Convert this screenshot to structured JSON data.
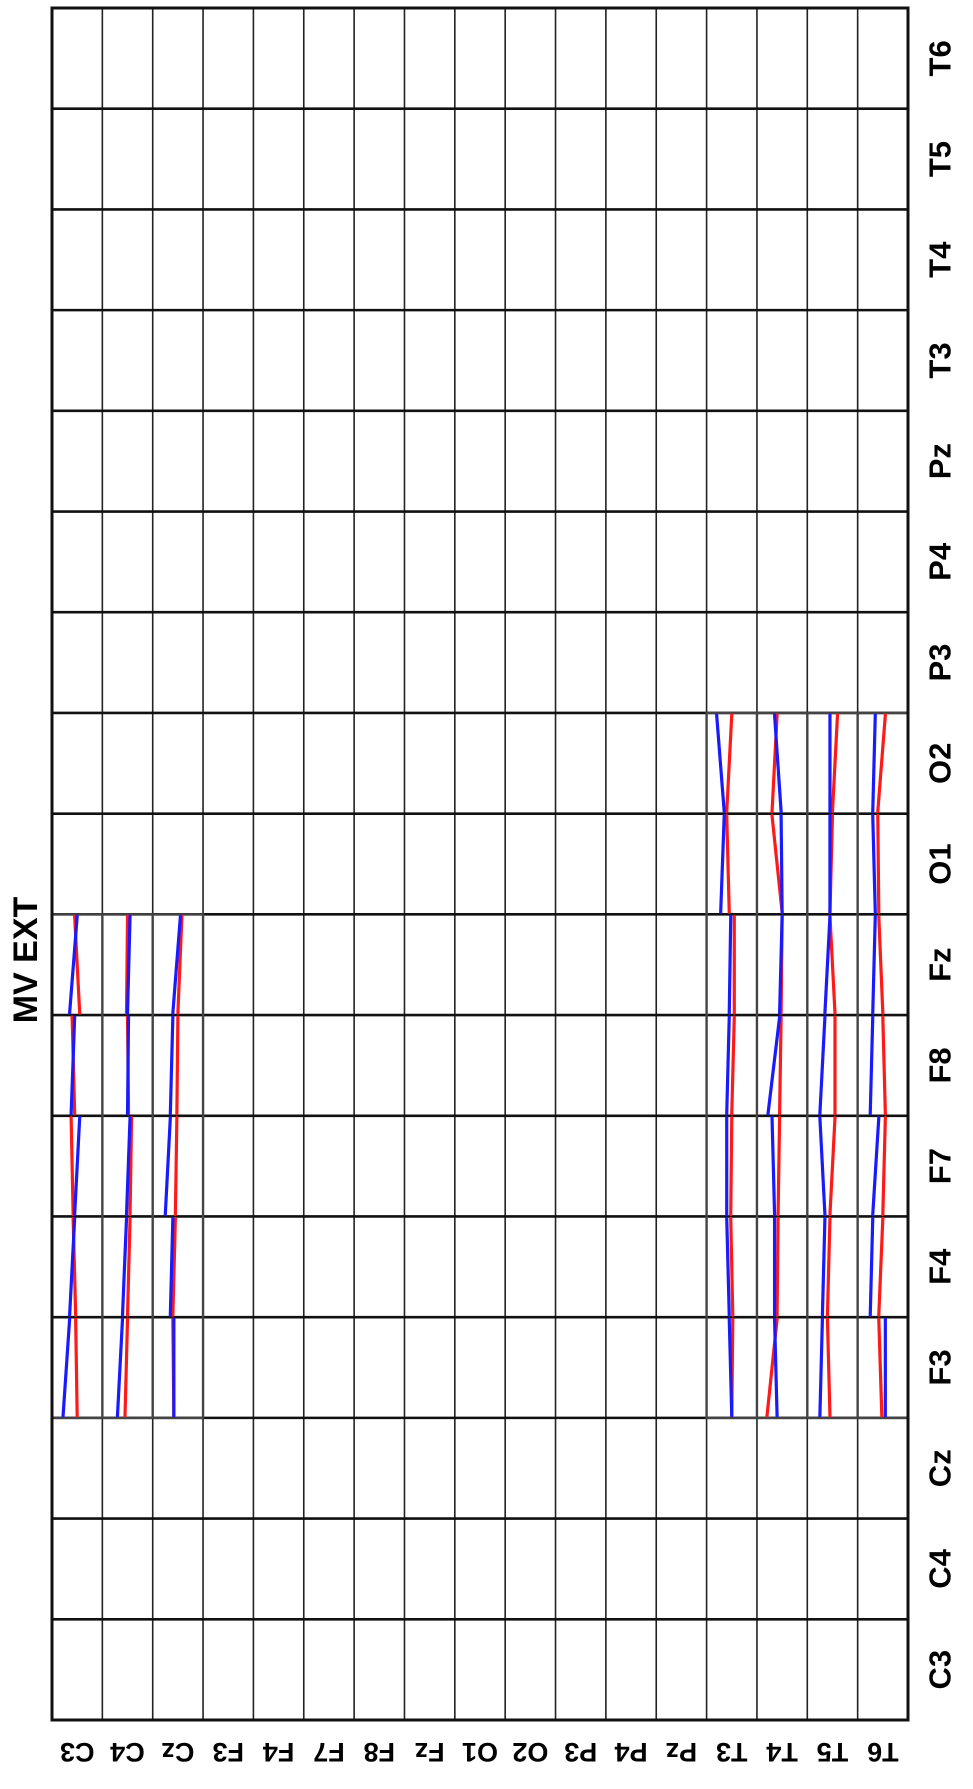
{
  "chart_data": {
    "type": "heatmap",
    "title": "MV EXT",
    "row_labels": [
      "C3",
      "C4",
      "Cz",
      "F3",
      "F4",
      "F7",
      "F8",
      "Fz",
      "O1",
      "O2",
      "P3",
      "P4",
      "Pz",
      "T3",
      "T4",
      "T5",
      "T6"
    ],
    "col_labels": [
      "C3",
      "C4",
      "Cz",
      "F3",
      "F4",
      "F7",
      "F8",
      "Fz",
      "O1",
      "O2",
      "P3",
      "P4",
      "Pz",
      "T3",
      "T4",
      "T5",
      "T6"
    ],
    "series": [
      {
        "name": "",
        "color": "#1a1aff"
      },
      {
        "name": "",
        "color": "#ff1a1a"
      }
    ],
    "cells": [
      {
        "row": "C3",
        "col": "F3",
        "b": [
          0.22,
          0.35
        ],
        "r": [
          0.5,
          0.47
        ]
      },
      {
        "row": "C3",
        "col": "F4",
        "b": [
          0.35,
          0.45
        ],
        "r": [
          0.47,
          0.42
        ]
      },
      {
        "row": "C3",
        "col": "F7",
        "b": [
          0.45,
          0.55
        ],
        "r": [
          0.42,
          0.38
        ]
      },
      {
        "row": "C3",
        "col": "F8",
        "b": [
          0.38,
          0.45
        ],
        "r": [
          0.45,
          0.4
        ]
      },
      {
        "row": "C3",
        "col": "Fz",
        "b": [
          0.35,
          0.5
        ],
        "r": [
          0.55,
          0.45
        ]
      },
      {
        "row": "C4",
        "col": "F3",
        "b": [
          0.3,
          0.4
        ],
        "r": [
          0.45,
          0.5
        ]
      },
      {
        "row": "C4",
        "col": "F4",
        "b": [
          0.4,
          0.48
        ],
        "r": [
          0.5,
          0.55
        ]
      },
      {
        "row": "C4",
        "col": "F7",
        "b": [
          0.48,
          0.55
        ],
        "r": [
          0.55,
          0.58
        ]
      },
      {
        "row": "C4",
        "col": "F8",
        "b": [
          0.5,
          0.52
        ],
        "r": [
          0.52,
          0.5
        ]
      },
      {
        "row": "C4",
        "col": "Fz",
        "b": [
          0.5,
          0.55
        ],
        "r": [
          0.48,
          0.5
        ]
      },
      {
        "row": "Cz",
        "col": "F3",
        "b": [
          0.42,
          0.42
        ],
        "r": [
          0.42,
          0.4
        ]
      },
      {
        "row": "Cz",
        "col": "F4",
        "b": [
          0.35,
          0.4
        ],
        "r": [
          0.4,
          0.45
        ]
      },
      {
        "row": "Cz",
        "col": "F7",
        "b": [
          0.25,
          0.35
        ],
        "r": [
          0.45,
          0.48
        ]
      },
      {
        "row": "Cz",
        "col": "F8",
        "b": [
          0.35,
          0.4
        ],
        "r": [
          0.48,
          0.5
        ]
      },
      {
        "row": "Cz",
        "col": "Fz",
        "b": [
          0.4,
          0.55
        ],
        "r": [
          0.5,
          0.58
        ]
      },
      {
        "row": "T3",
        "col": "F3",
        "b": [
          0.5,
          0.45
        ],
        "r": [
          0.5,
          0.52
        ]
      },
      {
        "row": "T3",
        "col": "F4",
        "b": [
          0.45,
          0.4
        ],
        "r": [
          0.52,
          0.48
        ]
      },
      {
        "row": "T3",
        "col": "F7",
        "b": [
          0.4,
          0.4
        ],
        "r": [
          0.48,
          0.5
        ]
      },
      {
        "row": "T3",
        "col": "F8",
        "b": [
          0.4,
          0.45
        ],
        "r": [
          0.5,
          0.55
        ]
      },
      {
        "row": "T3",
        "col": "Fz",
        "b": [
          0.45,
          0.48
        ],
        "r": [
          0.55,
          0.55
        ]
      },
      {
        "row": "T3",
        "col": "O1",
        "b": [
          0.28,
          0.35
        ],
        "r": [
          0.45,
          0.4
        ]
      },
      {
        "row": "T3",
        "col": "O2",
        "b": [
          0.35,
          0.2
        ],
        "r": [
          0.4,
          0.5
        ]
      },
      {
        "row": "T4",
        "col": "F3",
        "b": [
          0.4,
          0.35
        ],
        "r": [
          0.2,
          0.4
        ]
      },
      {
        "row": "T4",
        "col": "F4",
        "b": [
          0.35,
          0.35
        ],
        "r": [
          0.4,
          0.42
        ]
      },
      {
        "row": "T4",
        "col": "F7",
        "b": [
          0.35,
          0.3
        ],
        "r": [
          0.42,
          0.45
        ]
      },
      {
        "row": "T4",
        "col": "F8",
        "b": [
          0.22,
          0.45
        ],
        "r": [
          0.45,
          0.48
        ]
      },
      {
        "row": "T4",
        "col": "Fz",
        "b": [
          0.45,
          0.5
        ],
        "r": [
          0.48,
          0.5
        ]
      },
      {
        "row": "T4",
        "col": "O1",
        "b": [
          0.5,
          0.48
        ],
        "r": [
          0.5,
          0.3
        ]
      },
      {
        "row": "T4",
        "col": "O2",
        "b": [
          0.48,
          0.35
        ],
        "r": [
          0.3,
          0.4
        ]
      },
      {
        "row": "T5",
        "col": "F3",
        "b": [
          0.25,
          0.3
        ],
        "r": [
          0.45,
          0.4
        ]
      },
      {
        "row": "T5",
        "col": "F4",
        "b": [
          0.3,
          0.35
        ],
        "r": [
          0.4,
          0.45
        ]
      },
      {
        "row": "T5",
        "col": "F7",
        "b": [
          0.35,
          0.25
        ],
        "r": [
          0.45,
          0.55
        ]
      },
      {
        "row": "T5",
        "col": "F8",
        "b": [
          0.25,
          0.35
        ],
        "r": [
          0.55,
          0.55
        ]
      },
      {
        "row": "T5",
        "col": "Fz",
        "b": [
          0.35,
          0.45
        ],
        "r": [
          0.55,
          0.45
        ]
      },
      {
        "row": "T5",
        "col": "O1",
        "b": [
          0.45,
          0.45
        ],
        "r": [
          0.45,
          0.5
        ]
      },
      {
        "row": "T5",
        "col": "O2",
        "b": [
          0.45,
          0.45
        ],
        "r": [
          0.5,
          0.6
        ]
      },
      {
        "row": "T6",
        "col": "F3",
        "b": [
          0.55,
          0.55
        ],
        "r": [
          0.48,
          0.42
        ]
      },
      {
        "row": "T6",
        "col": "F4",
        "b": [
          0.25,
          0.3
        ],
        "r": [
          0.42,
          0.5
        ]
      },
      {
        "row": "T6",
        "col": "F7",
        "b": [
          0.3,
          0.42
        ],
        "r": [
          0.5,
          0.55
        ]
      },
      {
        "row": "T6",
        "col": "F8",
        "b": [
          0.25,
          0.3
        ],
        "r": [
          0.55,
          0.5
        ]
      },
      {
        "row": "T6",
        "col": "Fz",
        "b": [
          0.3,
          0.35
        ],
        "r": [
          0.5,
          0.42
        ]
      },
      {
        "row": "T6",
        "col": "O1",
        "b": [
          0.35,
          0.3
        ],
        "r": [
          0.42,
          0.4
        ]
      },
      {
        "row": "T6",
        "col": "O2",
        "b": [
          0.3,
          0.35
        ],
        "r": [
          0.4,
          0.55
        ]
      }
    ]
  }
}
